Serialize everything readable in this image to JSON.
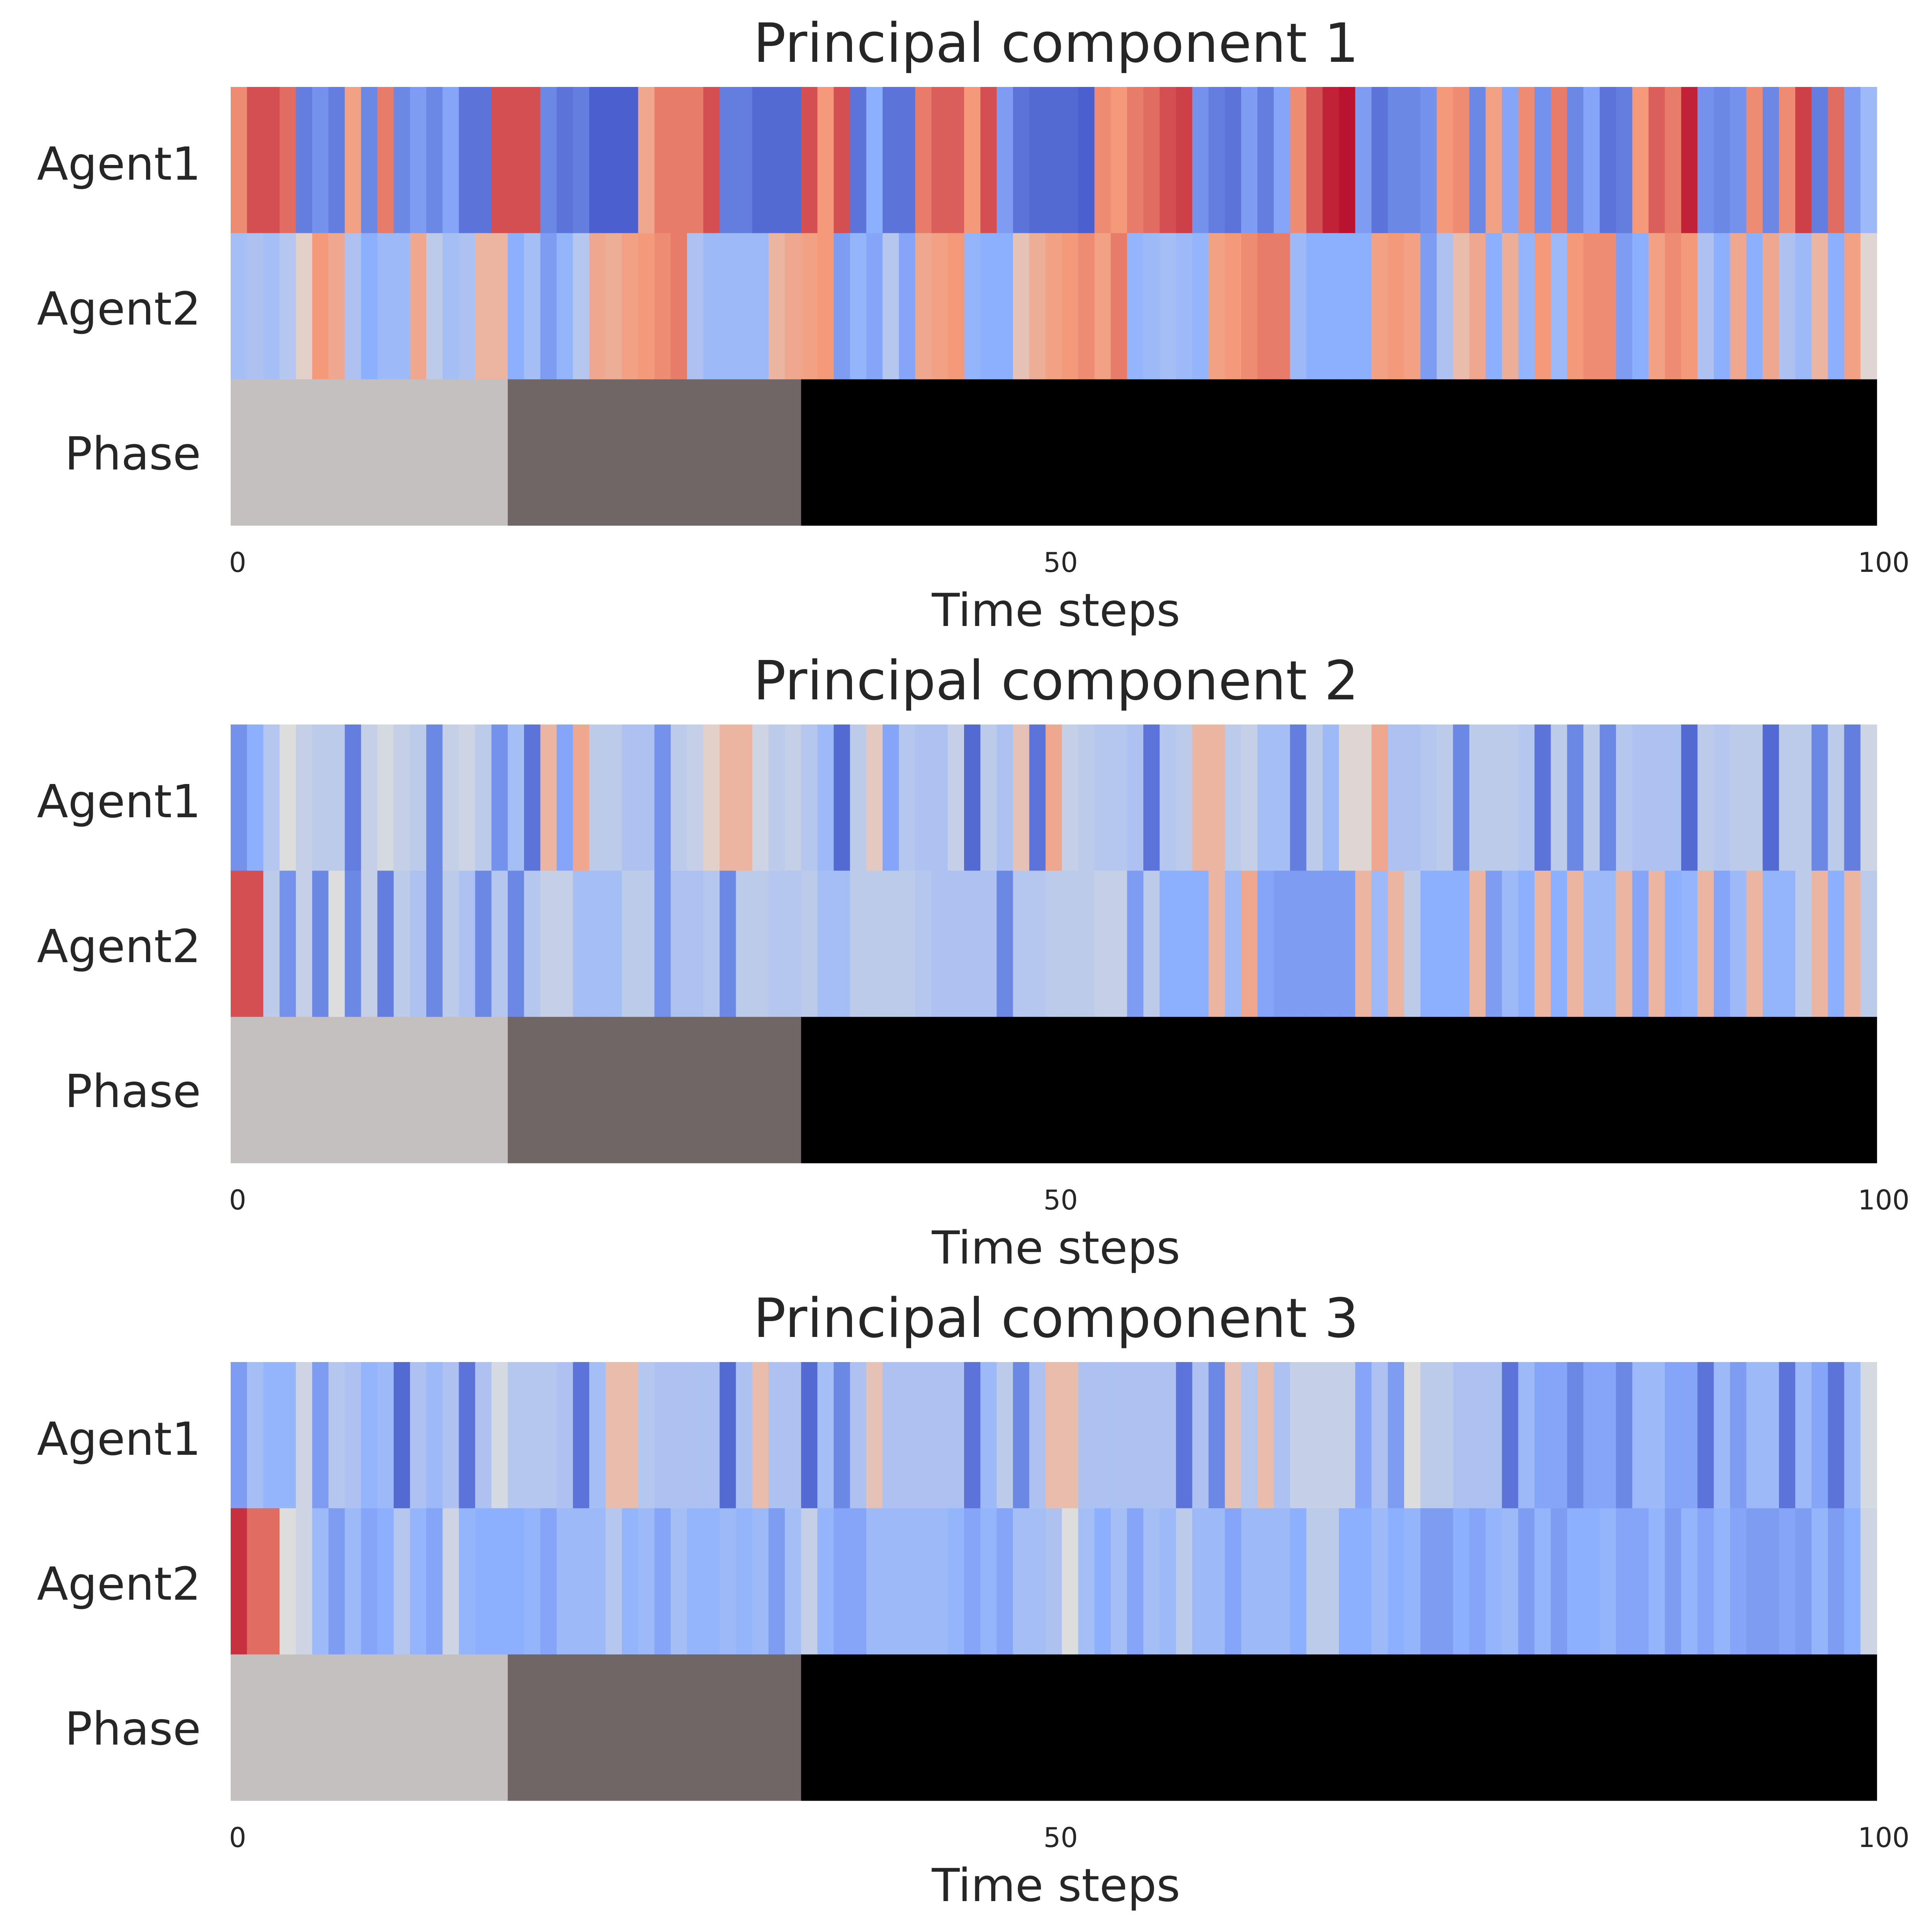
{
  "figure": {
    "background": "#ffffff",
    "text_color": "#262626"
  },
  "chart_data": [
    {
      "type": "heatmap",
      "title": "Principal component 1",
      "xlabel": "Time steps",
      "ylabel": "",
      "row_labels": [
        "Agent1",
        "Agent2",
        "Phase"
      ],
      "x_ticks": [
        0,
        50,
        100
      ],
      "xlim": [
        0,
        100
      ],
      "colormap": "coolwarm",
      "value_range": [
        -1,
        1
      ],
      "rows": [
        [
          0.55,
          0.75,
          0.75,
          0.65,
          -0.75,
          -0.65,
          -0.75,
          0.45,
          -0.7,
          0.6,
          -0.7,
          -0.6,
          -0.7,
          -0.55,
          -0.8,
          -0.8,
          0.75,
          0.75,
          0.75,
          -0.7,
          -0.8,
          -0.75,
          -0.9,
          -0.9,
          -0.9,
          0.4,
          0.6,
          0.6,
          0.6,
          0.75,
          -0.75,
          -0.75,
          -0.85,
          -0.85,
          -0.85,
          0.75,
          0.5,
          0.75,
          -0.8,
          -0.5,
          -0.8,
          -0.8,
          0.6,
          0.7,
          0.7,
          0.5,
          0.75,
          -0.6,
          -0.8,
          -0.85,
          -0.85,
          -0.85,
          -0.9,
          0.55,
          0.5,
          0.6,
          0.65,
          0.75,
          0.8,
          -0.65,
          -0.75,
          -0.8,
          -0.6,
          -0.75,
          -0.55,
          0.55,
          0.75,
          0.9,
          0.95,
          -0.6,
          -0.8,
          -0.7,
          -0.7,
          -0.65,
          0.5,
          0.55,
          -0.7,
          0.45,
          -0.55,
          0.55,
          -0.65,
          0.6,
          -0.7,
          -0.55,
          -0.8,
          -0.75,
          0.5,
          0.7,
          0.6,
          0.9,
          -0.65,
          -0.7,
          -0.65,
          0.55,
          -0.7,
          0.55,
          0.8,
          -0.75,
          0.65,
          -0.6,
          -0.4
        ],
        [
          -0.35,
          -0.3,
          -0.35,
          -0.25,
          0.1,
          0.5,
          0.4,
          -0.3,
          -0.5,
          -0.4,
          -0.4,
          0.4,
          -0.2,
          -0.35,
          -0.3,
          0.3,
          0.3,
          -0.5,
          -0.35,
          -0.6,
          -0.45,
          -0.25,
          0.4,
          0.35,
          0.45,
          0.5,
          0.55,
          0.6,
          -0.3,
          -0.4,
          -0.4,
          -0.4,
          -0.4,
          0.3,
          0.4,
          0.45,
          0.5,
          -0.6,
          -0.45,
          -0.55,
          -0.25,
          -0.55,
          0.4,
          0.45,
          0.5,
          -0.45,
          -0.5,
          -0.5,
          0.2,
          0.35,
          0.45,
          0.5,
          0.55,
          0.45,
          0.6,
          -0.45,
          -0.4,
          -0.35,
          -0.4,
          -0.45,
          0.45,
          0.5,
          0.55,
          0.6,
          0.6,
          -0.4,
          -0.5,
          -0.5,
          -0.5,
          -0.5,
          0.45,
          0.5,
          0.45,
          -0.6,
          -0.3,
          0.25,
          0.4,
          -0.5,
          0.35,
          -0.45,
          0.5,
          -0.4,
          0.5,
          0.55,
          0.55,
          -0.6,
          -0.5,
          0.45,
          0.55,
          0.5,
          -0.3,
          -0.5,
          0.4,
          -0.5,
          0.4,
          -0.3,
          -0.4,
          0.3,
          -0.5,
          0.45,
          0.05
        ],
        [
          0,
          0,
          0,
          0,
          0,
          0,
          0,
          0,
          0,
          0,
          0,
          0,
          0,
          0,
          0,
          0,
          0,
          1,
          1,
          1,
          1,
          1,
          1,
          1,
          1,
          1,
          1,
          1,
          1,
          1,
          1,
          1,
          1,
          1,
          1,
          2,
          2,
          2,
          2,
          2,
          2,
          2,
          2,
          2,
          2,
          2,
          2,
          2,
          2,
          2,
          2,
          2,
          2,
          2,
          2,
          2,
          2,
          2,
          2,
          2,
          2,
          2,
          2,
          2,
          2,
          2,
          2,
          2,
          2,
          2,
          2,
          2,
          2,
          2,
          2,
          2,
          2,
          2,
          2,
          2,
          2,
          2,
          2,
          2,
          2,
          2,
          2,
          2,
          2,
          2,
          2,
          2,
          2,
          2,
          2,
          2,
          2,
          2,
          2,
          2,
          2
        ]
      ],
      "phase_colors": [
        "#c5c0c0",
        "#706665",
        "#000000"
      ]
    },
    {
      "type": "heatmap",
      "title": "Principal component 2",
      "xlabel": "Time steps",
      "ylabel": "",
      "row_labels": [
        "Agent1",
        "Agent2",
        "Phase"
      ],
      "x_ticks": [
        0,
        50,
        100
      ],
      "xlim": [
        0,
        100
      ],
      "colormap": "coolwarm",
      "value_range": [
        -1,
        1
      ],
      "rows": [
        [
          -0.65,
          -0.5,
          -0.25,
          0.0,
          -0.15,
          -0.2,
          -0.2,
          -0.75,
          -0.15,
          -0.05,
          -0.15,
          -0.2,
          -0.7,
          -0.15,
          -0.1,
          -0.2,
          -0.65,
          -0.35,
          -0.8,
          0.3,
          -0.55,
          0.4,
          -0.2,
          -0.2,
          -0.3,
          -0.3,
          -0.65,
          -0.2,
          -0.15,
          0.1,
          0.3,
          0.3,
          -0.1,
          -0.2,
          -0.15,
          -0.25,
          -0.4,
          -0.85,
          -0.2,
          0.15,
          -0.55,
          -0.25,
          -0.3,
          -0.3,
          -0.15,
          -0.85,
          -0.2,
          -0.3,
          0.2,
          -0.8,
          0.4,
          -0.15,
          -0.2,
          -0.25,
          -0.25,
          -0.3,
          -0.8,
          -0.25,
          -0.2,
          0.3,
          0.3,
          -0.2,
          -0.15,
          -0.35,
          -0.35,
          -0.75,
          -0.2,
          -0.4,
          0.05,
          0.05,
          0.4,
          -0.3,
          -0.3,
          -0.25,
          -0.2,
          -0.7,
          -0.2,
          -0.2,
          -0.2,
          -0.25,
          -0.8,
          -0.2,
          -0.7,
          -0.2,
          -0.7,
          -0.25,
          -0.3,
          -0.3,
          -0.3,
          -0.85,
          -0.2,
          -0.25,
          -0.2,
          -0.2,
          -0.85,
          -0.2,
          -0.2,
          -0.7,
          -0.2,
          -0.75,
          -0.1
        ],
        [
          0.75,
          0.75,
          -0.2,
          -0.65,
          -0.15,
          -0.7,
          0.0,
          -0.7,
          -0.15,
          -0.75,
          -0.2,
          -0.3,
          -0.7,
          -0.2,
          -0.3,
          -0.7,
          -0.25,
          -0.7,
          -0.25,
          -0.15,
          -0.15,
          -0.35,
          -0.35,
          -0.35,
          -0.2,
          -0.2,
          -0.65,
          -0.3,
          -0.3,
          -0.25,
          -0.7,
          -0.2,
          -0.2,
          -0.25,
          -0.25,
          -0.2,
          -0.35,
          -0.35,
          -0.2,
          -0.2,
          -0.2,
          -0.2,
          -0.25,
          -0.3,
          -0.3,
          -0.3,
          -0.3,
          -0.7,
          -0.25,
          -0.25,
          -0.2,
          -0.2,
          -0.2,
          -0.15,
          -0.15,
          -0.6,
          -0.2,
          -0.5,
          -0.5,
          -0.5,
          0.3,
          -0.4,
          0.4,
          -0.55,
          -0.6,
          -0.6,
          -0.6,
          -0.6,
          -0.6,
          0.3,
          -0.4,
          0.3,
          -0.2,
          -0.5,
          -0.5,
          -0.5,
          0.3,
          -0.6,
          -0.4,
          -0.5,
          0.3,
          -0.5,
          0.3,
          -0.4,
          -0.4,
          0.3,
          -0.55,
          0.3,
          -0.5,
          -0.45,
          0.3,
          -0.55,
          -0.4,
          0.3,
          -0.45,
          -0.45,
          -0.2,
          0.3,
          -0.5,
          0.3,
          -0.2
        ],
        [
          0,
          0,
          0,
          0,
          0,
          0,
          0,
          0,
          0,
          0,
          0,
          0,
          0,
          0,
          0,
          0,
          0,
          1,
          1,
          1,
          1,
          1,
          1,
          1,
          1,
          1,
          1,
          1,
          1,
          1,
          1,
          1,
          1,
          1,
          1,
          2,
          2,
          2,
          2,
          2,
          2,
          2,
          2,
          2,
          2,
          2,
          2,
          2,
          2,
          2,
          2,
          2,
          2,
          2,
          2,
          2,
          2,
          2,
          2,
          2,
          2,
          2,
          2,
          2,
          2,
          2,
          2,
          2,
          2,
          2,
          2,
          2,
          2,
          2,
          2,
          2,
          2,
          2,
          2,
          2,
          2,
          2,
          2,
          2,
          2,
          2,
          2,
          2,
          2,
          2,
          2,
          2,
          2,
          2,
          2,
          2,
          2,
          2,
          2,
          2,
          2
        ]
      ],
      "phase_colors": [
        "#c5c0c0",
        "#706665",
        "#000000"
      ]
    },
    {
      "type": "heatmap",
      "title": "Principal component 3",
      "xlabel": "Time steps",
      "ylabel": "",
      "row_labels": [
        "Agent1",
        "Agent2",
        "Phase"
      ],
      "x_ticks": [
        0,
        50,
        100
      ],
      "xlim": [
        0,
        100
      ],
      "colormap": "coolwarm",
      "value_range": [
        -1,
        1
      ],
      "rows": [
        [
          -0.6,
          -0.35,
          -0.45,
          -0.45,
          -0.1,
          -0.6,
          -0.25,
          -0.3,
          -0.45,
          -0.4,
          -0.85,
          -0.3,
          -0.4,
          -0.3,
          -0.8,
          -0.3,
          -0.05,
          -0.25,
          -0.25,
          -0.25,
          -0.3,
          -0.8,
          -0.35,
          0.25,
          0.25,
          -0.25,
          -0.3,
          -0.3,
          -0.3,
          -0.3,
          -0.85,
          -0.3,
          0.25,
          -0.3,
          -0.3,
          -0.85,
          -0.35,
          -0.7,
          -0.3,
          0.2,
          -0.3,
          -0.3,
          -0.3,
          -0.3,
          -0.3,
          -0.8,
          -0.4,
          -0.2,
          -0.7,
          -0.3,
          0.25,
          0.25,
          -0.3,
          -0.3,
          -0.3,
          -0.3,
          -0.3,
          -0.3,
          -0.8,
          -0.3,
          -0.7,
          0.2,
          -0.25,
          0.25,
          -0.3,
          -0.15,
          -0.15,
          -0.15,
          -0.15,
          -0.55,
          -0.3,
          -0.6,
          0.0,
          -0.2,
          -0.2,
          -0.3,
          -0.3,
          -0.3,
          -0.8,
          -0.4,
          -0.55,
          -0.55,
          -0.7,
          -0.55,
          -0.55,
          -0.7,
          -0.4,
          -0.4,
          -0.55,
          -0.55,
          -0.8,
          -0.4,
          -0.6,
          -0.4,
          -0.4,
          -0.8,
          -0.4,
          -0.55,
          -0.8,
          -0.4,
          -0.05
        ],
        [
          0.85,
          0.65,
          0.65,
          0.0,
          -0.1,
          -0.4,
          -0.6,
          -0.4,
          -0.55,
          -0.5,
          -0.25,
          -0.45,
          -0.55,
          -0.1,
          -0.45,
          -0.5,
          -0.5,
          -0.5,
          -0.45,
          -0.55,
          -0.4,
          -0.4,
          -0.4,
          -0.25,
          -0.45,
          -0.4,
          -0.55,
          -0.35,
          -0.45,
          -0.45,
          -0.4,
          -0.45,
          -0.4,
          -0.6,
          -0.35,
          -0.15,
          -0.45,
          -0.55,
          -0.55,
          -0.4,
          -0.4,
          -0.4,
          -0.4,
          -0.4,
          -0.45,
          -0.55,
          -0.45,
          -0.55,
          -0.35,
          -0.35,
          -0.3,
          0.0,
          -0.35,
          -0.5,
          -0.35,
          -0.55,
          -0.35,
          -0.4,
          -0.2,
          -0.4,
          -0.4,
          -0.55,
          -0.4,
          -0.4,
          -0.4,
          -0.5,
          -0.2,
          -0.2,
          -0.5,
          -0.5,
          -0.4,
          -0.5,
          -0.45,
          -0.6,
          -0.6,
          -0.5,
          -0.55,
          -0.45,
          -0.4,
          -0.6,
          -0.45,
          -0.6,
          -0.5,
          -0.5,
          -0.45,
          -0.55,
          -0.55,
          -0.45,
          -0.6,
          -0.45,
          -0.55,
          -0.45,
          -0.55,
          -0.6,
          -0.6,
          -0.55,
          -0.6,
          -0.45,
          -0.6,
          -0.5,
          -0.1
        ],
        [
          0,
          0,
          0,
          0,
          0,
          0,
          0,
          0,
          0,
          0,
          0,
          0,
          0,
          0,
          0,
          0,
          0,
          1,
          1,
          1,
          1,
          1,
          1,
          1,
          1,
          1,
          1,
          1,
          1,
          1,
          1,
          1,
          1,
          1,
          1,
          2,
          2,
          2,
          2,
          2,
          2,
          2,
          2,
          2,
          2,
          2,
          2,
          2,
          2,
          2,
          2,
          2,
          2,
          2,
          2,
          2,
          2,
          2,
          2,
          2,
          2,
          2,
          2,
          2,
          2,
          2,
          2,
          2,
          2,
          2,
          2,
          2,
          2,
          2,
          2,
          2,
          2,
          2,
          2,
          2,
          2,
          2,
          2,
          2,
          2,
          2,
          2,
          2,
          2,
          2,
          2,
          2,
          2,
          2,
          2,
          2,
          2,
          2,
          2,
          2,
          2
        ]
      ],
      "phase_colors": [
        "#c5c0c0",
        "#706665",
        "#000000"
      ]
    }
  ]
}
